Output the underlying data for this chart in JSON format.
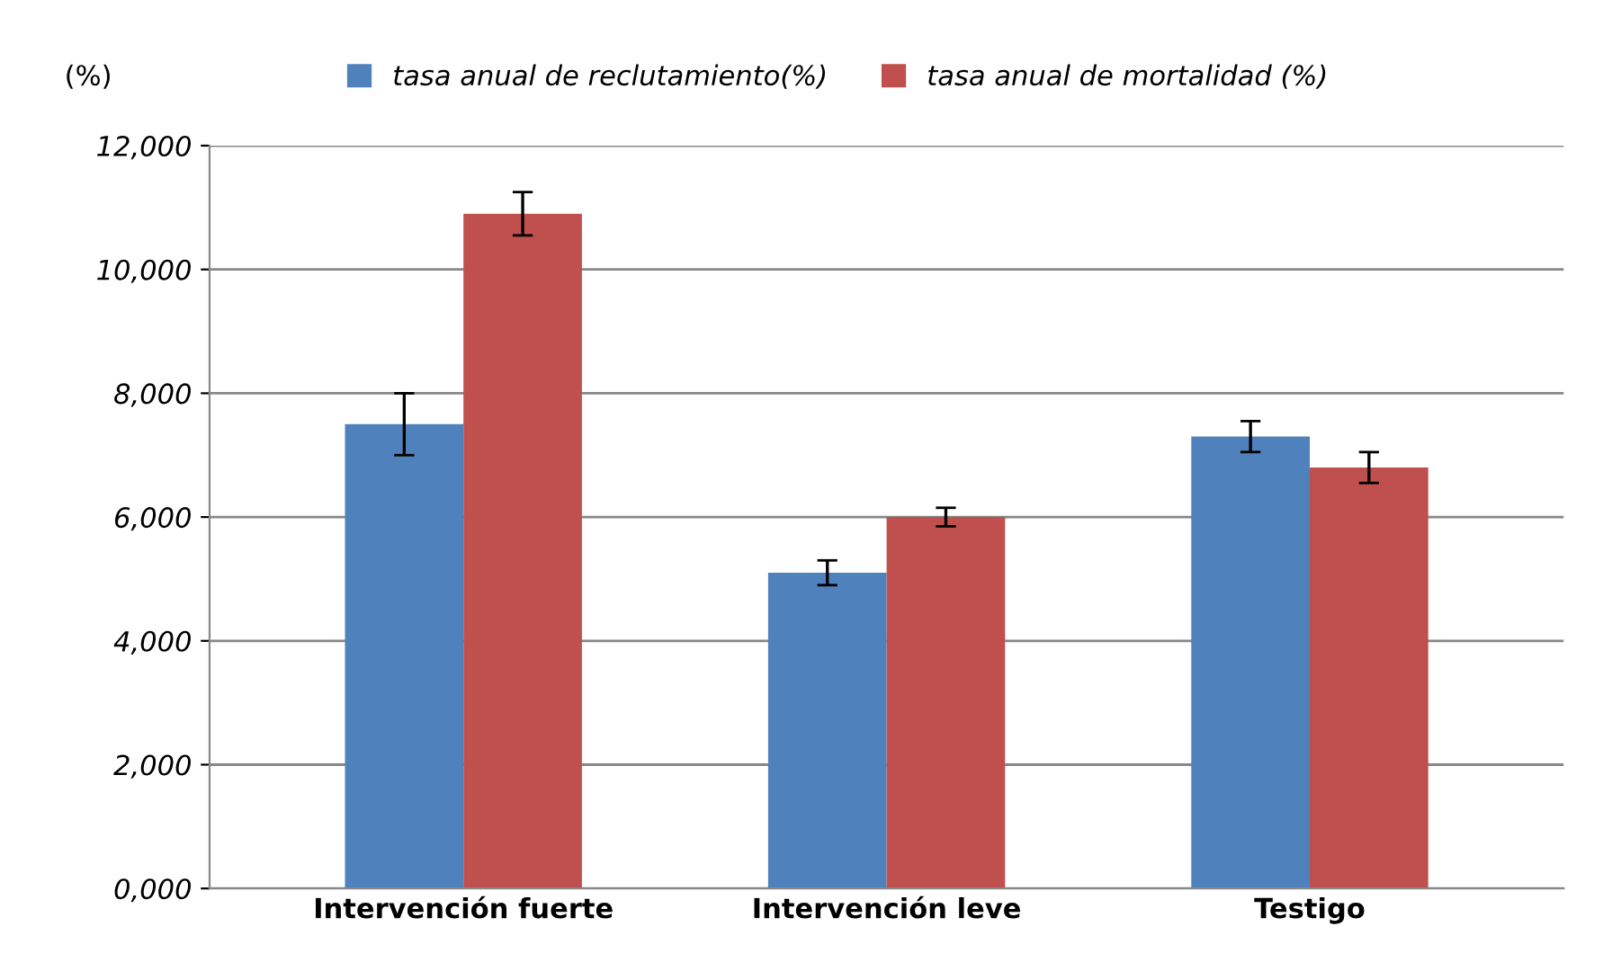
{
  "chart_data": {
    "type": "bar",
    "ylabel": "(%)",
    "categories": [
      "Intervención fuerte",
      "Intervención leve",
      "Testigo"
    ],
    "series": [
      {
        "name": "tasa anual de reclutamiento(%)",
        "color": "#4f81bd",
        "values": [
          7500,
          5100,
          7300
        ],
        "errors": [
          500,
          200,
          250
        ]
      },
      {
        "name": "tasa anual de mortalidad (%)",
        "color": "#c0504d",
        "values": [
          10900,
          6000,
          6800
        ],
        "errors": [
          350,
          150,
          250
        ]
      }
    ],
    "ylim": [
      0,
      12000
    ],
    "yticks": [
      {
        "value": 0,
        "label": "0,000"
      },
      {
        "value": 2000,
        "label": "2,000"
      },
      {
        "value": 4000,
        "label": "4,000"
      },
      {
        "value": 6000,
        "label": "6,000"
      },
      {
        "value": 8000,
        "label": "8,000"
      },
      {
        "value": 10000,
        "label": "10,000"
      },
      {
        "value": 12000,
        "label": "12,000"
      }
    ],
    "grid": "y",
    "legend": "top"
  }
}
